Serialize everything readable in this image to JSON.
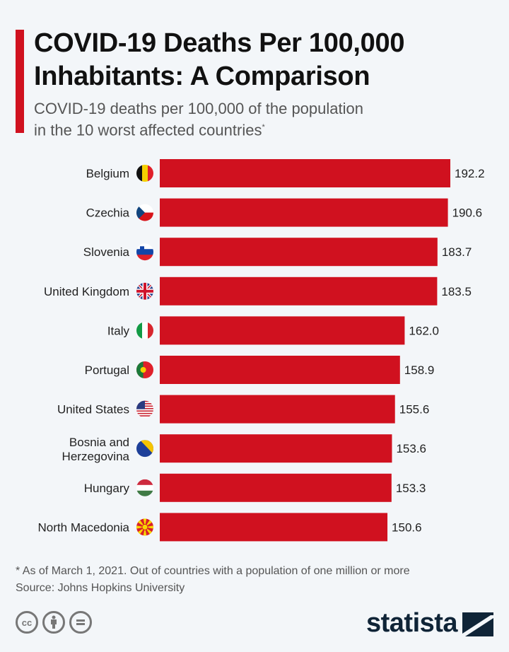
{
  "chart_data": {
    "type": "bar",
    "orientation": "horizontal",
    "title": "COVID-19 Deaths Per 100,000 Inhabitants: A Comparison",
    "subtitle": "COVID-19 deaths per 100,000 of the population in the 10 worst affected countries",
    "subtitle_line1": "COVID-19 deaths per 100,000 of the population",
    "subtitle_line2": "in the 10 worst affected countries",
    "subtitle_mark": "*",
    "categories": [
      "Belgium",
      "Czechia",
      "Slovenia",
      "United Kingdom",
      "Italy",
      "Portugal",
      "United States",
      "Bosnia and Herzegovina",
      "Hungary",
      "North Macedonia"
    ],
    "values": [
      192.2,
      190.6,
      183.7,
      183.5,
      162.0,
      158.9,
      155.6,
      153.6,
      153.3,
      150.6
    ],
    "flags": [
      "belgium-flag",
      "czechia-flag",
      "slovenia-flag",
      "uk-flag",
      "italy-flag",
      "portugal-flag",
      "us-flag",
      "bosnia-flag",
      "hungary-flag",
      "north-macedonia-flag"
    ],
    "xlim": [
      0,
      200
    ],
    "grid": false,
    "bar_color": "#d0111f"
  },
  "footer": {
    "note": "* As of March 1, 2021. Out of countries with a population of one million or more",
    "source": "Source: Johns Hopkins University"
  },
  "license_icons": [
    "cc-icon",
    "attribution-icon",
    "no-derivatives-icon"
  ],
  "brand": {
    "name": "statista",
    "color": "#0f2437"
  }
}
